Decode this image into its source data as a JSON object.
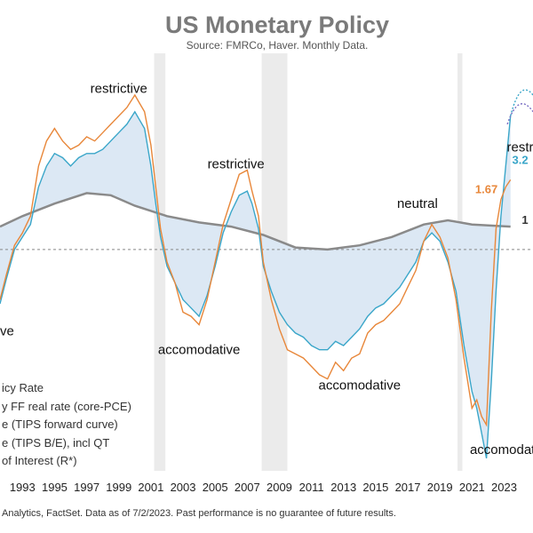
{
  "title": "US Monetary Policy",
  "subtitle": "Source: FMRCo, Haver.  Monthly Data.",
  "footer": "Analytics, FactSet. Data as of 7/2/2023. Past performance is no guarantee of future results.",
  "regime_labels": [
    {
      "text": "restrictive",
      "x": 1999.0,
      "y": 3.75
    },
    {
      "text": "restrictive",
      "x": 2006.3,
      "y": 1.95
    },
    {
      "text": "ative",
      "x": 1991.6,
      "y": -2.05
    },
    {
      "text": "accomodative",
      "x": 2004.0,
      "y": -2.5
    },
    {
      "text": "accomodative",
      "x": 2014.0,
      "y": -3.35
    },
    {
      "text": "neutral",
      "x": 2017.6,
      "y": 1.0
    },
    {
      "text": "accomodativ",
      "x": 2023.2,
      "y": -4.9
    },
    {
      "text": "restr",
      "x": 2024.0,
      "y": 2.35
    }
  ],
  "value_labels": [
    {
      "text": "1.67",
      "x": 2021.9,
      "y": 1.35,
      "color": "#e8873a"
    },
    {
      "text": "3.2",
      "x": 2024.0,
      "y": 2.05,
      "color": "#3aa6c9"
    },
    {
      "text": "1",
      "x": 2024.3,
      "y": 0.62,
      "color": "#333333"
    }
  ],
  "legend": [
    {
      "label": "icy Rate"
    },
    {
      "label": "y FF real rate (core-PCE)"
    },
    {
      "label": "e (TIPS forward curve)"
    },
    {
      "label": "e (TIPS B/E), incl QT"
    },
    {
      "label": "of Interest (R*)"
    }
  ],
  "colors": {
    "real_rate": "#e8873a",
    "tips_rate": "#3aa6c9",
    "r_star": "#8a8a8a",
    "fill": "#dce8f4",
    "recession": "#ebebeb",
    "title": "#7a7a7a"
  },
  "chart_data": {
    "type": "line",
    "title": "US Monetary Policy",
    "xlabel": "",
    "ylabel": "",
    "xlim": [
      1991.6,
      2024.8
    ],
    "ylim": [
      -5.3,
      4.7
    ],
    "x_ticks": [
      1993,
      1995,
      1997,
      1999,
      2001,
      2003,
      2005,
      2007,
      2009,
      2011,
      2013,
      2015,
      2017,
      2019,
      2021,
      2023
    ],
    "x_tick_labels": [
      "1993",
      "1995",
      "1997",
      "1999",
      "2001",
      "2003",
      "2005",
      "2007",
      "2009",
      "2011",
      "2013",
      "2015",
      "2017",
      "2019",
      "2021",
      "2023"
    ],
    "zero_line": true,
    "recessions": [
      [
        2001.2,
        2001.9
      ],
      [
        2007.9,
        2009.5
      ],
      [
        2020.1,
        2020.4
      ]
    ],
    "series": [
      {
        "key": "real_rate",
        "x": [
          1991.6,
          1992.0,
          1992.5,
          1993.0,
          1993.5,
          1994.0,
          1994.5,
          1995.0,
          1995.5,
          1996.0,
          1996.5,
          1997.0,
          1997.5,
          1998.0,
          1998.5,
          1999.0,
          1999.5,
          2000.0,
          2000.3,
          2000.6,
          2001.0,
          2001.3,
          2001.6,
          2002.0,
          2002.5,
          2003.0,
          2003.5,
          2004.0,
          2004.5,
          2005.0,
          2005.5,
          2006.0,
          2006.5,
          2007.0,
          2007.3,
          2007.7,
          2008.0,
          2008.5,
          2009.0,
          2009.5,
          2010.0,
          2010.5,
          2011.0,
          2011.5,
          2012.0,
          2012.5,
          2013.0,
          2013.5,
          2014.0,
          2014.5,
          2015.0,
          2015.5,
          2016.0,
          2016.5,
          2017.0,
          2017.5,
          2018.0,
          2018.5,
          2019.0,
          2019.5,
          2020.0,
          2020.5,
          2021.0,
          2021.3,
          2021.6,
          2021.9,
          2022.2,
          2022.5,
          2022.8,
          2023.1,
          2023.4
        ],
        "values": [
          -1.2,
          -0.6,
          0.1,
          0.4,
          0.8,
          2.0,
          2.6,
          2.9,
          2.6,
          2.4,
          2.5,
          2.7,
          2.6,
          2.8,
          3.0,
          3.2,
          3.4,
          3.7,
          3.5,
          3.3,
          2.5,
          1.5,
          0.5,
          -0.3,
          -0.8,
          -1.5,
          -1.6,
          -1.8,
          -1.2,
          -0.3,
          0.6,
          1.2,
          1.8,
          1.9,
          1.4,
          0.8,
          -0.3,
          -1.2,
          -1.9,
          -2.4,
          -2.5,
          -2.6,
          -2.8,
          -3.0,
          -3.1,
          -2.7,
          -2.9,
          -2.6,
          -2.5,
          -2.0,
          -1.8,
          -1.7,
          -1.5,
          -1.3,
          -0.9,
          -0.5,
          0.2,
          0.6,
          0.3,
          -0.2,
          -1.2,
          -2.6,
          -3.8,
          -3.6,
          -4.0,
          -4.2,
          -1.5,
          0.5,
          1.2,
          1.5,
          1.67
        ]
      },
      {
        "key": "tips_rate",
        "x": [
          1991.6,
          1992.0,
          1992.5,
          1993.0,
          1993.5,
          1994.0,
          1994.5,
          1995.0,
          1995.5,
          1996.0,
          1996.5,
          1997.0,
          1997.5,
          1998.0,
          1998.5,
          1999.0,
          1999.5,
          2000.0,
          2000.3,
          2000.6,
          2001.0,
          2001.3,
          2001.6,
          2002.0,
          2002.5,
          2003.0,
          2003.5,
          2004.0,
          2004.5,
          2005.0,
          2005.5,
          2006.0,
          2006.5,
          2007.0,
          2007.3,
          2007.7,
          2008.0,
          2008.5,
          2009.0,
          2009.5,
          2010.0,
          2010.5,
          2011.0,
          2011.5,
          2012.0,
          2012.5,
          2013.0,
          2013.5,
          2014.0,
          2014.5,
          2015.0,
          2015.5,
          2016.0,
          2016.5,
          2017.0,
          2017.5,
          2018.0,
          2018.5,
          2019.0,
          2019.5,
          2020.0,
          2020.5,
          2021.0,
          2021.3,
          2021.6,
          2021.9,
          2022.2,
          2022.5,
          2022.8,
          2023.1,
          2023.4
        ],
        "values": [
          -1.3,
          -0.7,
          0.0,
          0.3,
          0.6,
          1.5,
          2.0,
          2.3,
          2.2,
          2.0,
          2.2,
          2.3,
          2.3,
          2.4,
          2.6,
          2.8,
          3.0,
          3.3,
          3.1,
          2.9,
          2.0,
          1.1,
          0.3,
          -0.4,
          -0.8,
          -1.2,
          -1.4,
          -1.6,
          -1.1,
          -0.4,
          0.4,
          0.9,
          1.3,
          1.4,
          1.1,
          0.5,
          -0.4,
          -1.0,
          -1.5,
          -1.8,
          -2.0,
          -2.1,
          -2.3,
          -2.4,
          -2.4,
          -2.2,
          -2.3,
          -2.1,
          -1.9,
          -1.6,
          -1.4,
          -1.3,
          -1.1,
          -0.9,
          -0.6,
          -0.3,
          0.2,
          0.4,
          0.2,
          -0.3,
          -1.0,
          -2.3,
          -3.4,
          -3.8,
          -4.4,
          -5.0,
          -3.2,
          -1.0,
          0.8,
          2.0,
          3.2
        ]
      },
      {
        "key": "r_star",
        "x": [
          1991.6,
          1993.0,
          1995.0,
          1997.0,
          1998.5,
          2000.0,
          2002.0,
          2004.0,
          2006.0,
          2008.0,
          2010.0,
          2012.0,
          2014.0,
          2016.0,
          2018.0,
          2019.5,
          2021.0,
          2023.4
        ],
        "values": [
          0.55,
          0.8,
          1.1,
          1.35,
          1.3,
          1.05,
          0.8,
          0.65,
          0.55,
          0.35,
          0.05,
          0.0,
          0.1,
          0.3,
          0.6,
          0.7,
          0.6,
          0.55
        ]
      }
    ]
  }
}
